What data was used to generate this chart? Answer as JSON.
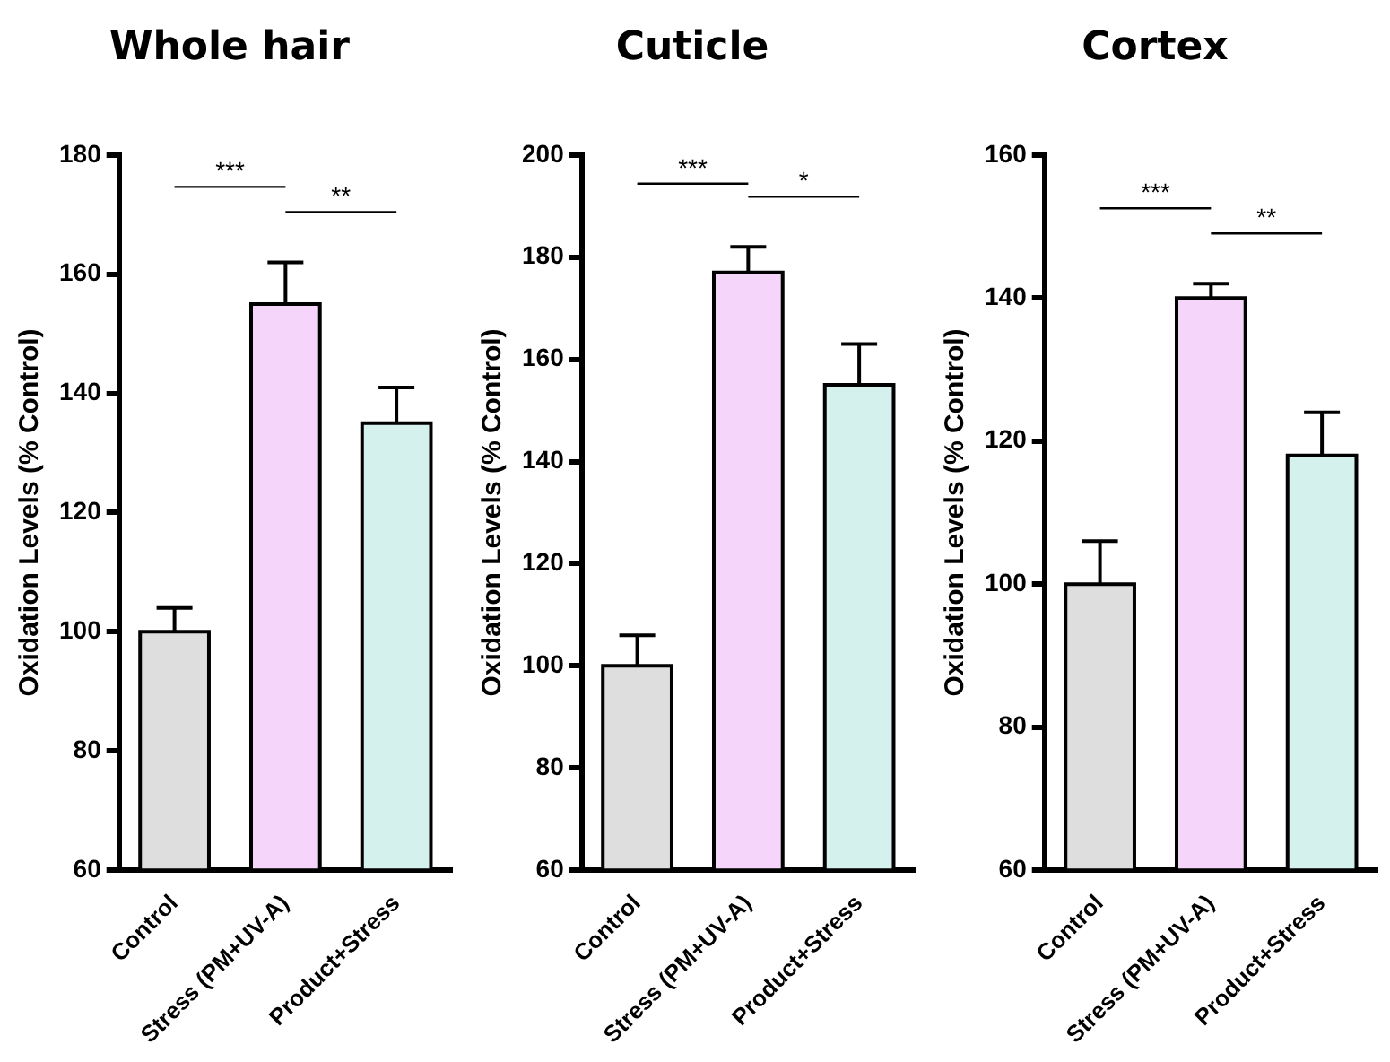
{
  "chart_data": [
    {
      "type": "bar",
      "title": "Whole hair",
      "ylabel": "Oxidation Levels (% Control)",
      "categories": [
        "Control",
        "Stress (PM+UV-A)",
        "Product+Stress"
      ],
      "values": [
        100,
        155,
        135
      ],
      "errors": [
        4,
        7,
        6
      ],
      "colors": [
        "#dedede",
        "#f5d6fa",
        "#d5f1ee"
      ],
      "ylim": [
        60,
        180
      ],
      "yticks": [
        60,
        80,
        100,
        120,
        140,
        160,
        180
      ],
      "grid": false,
      "legend": false,
      "annotations": [
        "***",
        "**"
      ]
    },
    {
      "type": "bar",
      "title": "Cuticle",
      "ylabel": "Oxidation Levels (% Control)",
      "categories": [
        "Control",
        "Stress (PM+UV-A)",
        "Product+Stress"
      ],
      "values": [
        100,
        177,
        155
      ],
      "errors": [
        6,
        5,
        8
      ],
      "colors": [
        "#dedede",
        "#f5d6fa",
        "#d5f1ee"
      ],
      "ylim": [
        60,
        200
      ],
      "yticks": [
        60,
        80,
        100,
        120,
        140,
        160,
        180,
        200
      ],
      "grid": false,
      "legend": false,
      "annotations": [
        "***",
        "*"
      ]
    },
    {
      "type": "bar",
      "title": "Cortex",
      "ylabel": "Oxidation Levels (% Control)",
      "categories": [
        "Control",
        "Stress (PM+UV-A)",
        "Product+Stress"
      ],
      "values": [
        100,
        140,
        118
      ],
      "errors": [
        6,
        2,
        6
      ],
      "colors": [
        "#dedede",
        "#f5d6fa",
        "#d5f1ee"
      ],
      "ylim": [
        60,
        160
      ],
      "yticks": [
        60,
        80,
        100,
        120,
        140,
        160
      ],
      "grid": false,
      "legend": false,
      "annotations": [
        "***",
        "**"
      ]
    }
  ]
}
